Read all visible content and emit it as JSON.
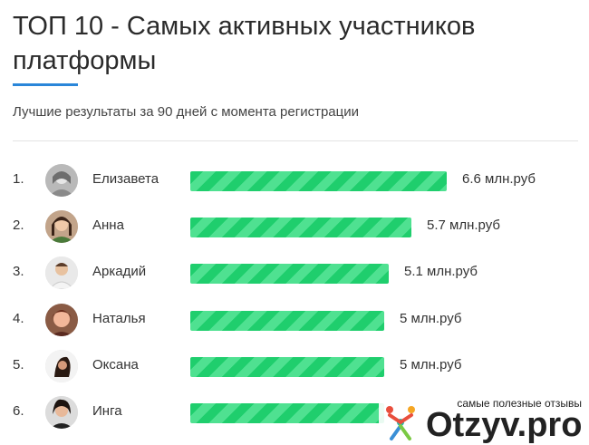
{
  "header": {
    "title": "ТОП 10 - Самых активных участников платформы",
    "subtitle": "Лучшие результаты за 90 дней с момента регистрации"
  },
  "leaders": [
    {
      "rank": "1.",
      "name": "Елизавета",
      "value_label": "6.6 млн.руб",
      "value": 6.6
    },
    {
      "rank": "2.",
      "name": "Анна",
      "value_label": "5.7 млн.руб",
      "value": 5.7
    },
    {
      "rank": "3.",
      "name": "Аркадий",
      "value_label": "5.1 млн.руб",
      "value": 5.1
    },
    {
      "rank": "4.",
      "name": "Наталья",
      "value_label": "5 млн.руб",
      "value": 5.0
    },
    {
      "rank": "5.",
      "name": "Оксана",
      "value_label": "5 млн.руб",
      "value": 5.0
    },
    {
      "rank": "6.",
      "name": "Инга",
      "value_label": "",
      "value": 5.0
    }
  ],
  "colors": {
    "bar": "#1fce6d",
    "bar_stripe": "#4fe191",
    "accent_underline": "#2a86d9"
  },
  "watermark": {
    "caption": "самые полезные отзывы",
    "logo_text": "Otzyv.pro"
  }
}
